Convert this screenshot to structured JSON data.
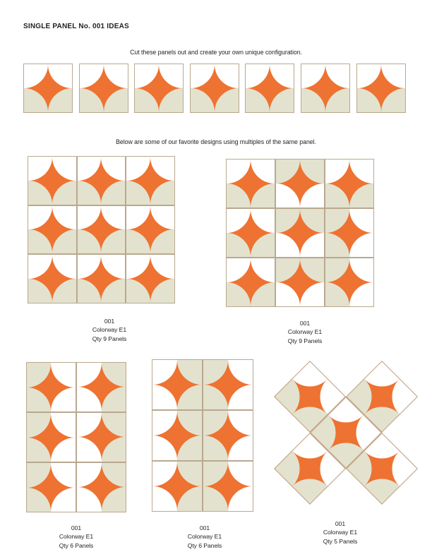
{
  "page": {
    "title": "SINGLE PANEL No. 001 IDEAS",
    "intro": "Cut these panels out and create your own unique configuration.",
    "note": "Below are some of our favorite designs using multiples of the same panel."
  },
  "colors": {
    "orange": "#ee7231",
    "beige": "#e3e2ce",
    "line": "#b9a88f",
    "text": "#231f20",
    "page_bg": "#ffffff"
  },
  "cutout_row": {
    "rotations": [
      0,
      0,
      0,
      0,
      0,
      0,
      0
    ]
  },
  "designs": [
    {
      "name": "3x3 all stars",
      "cols": 3,
      "rows": 3,
      "rotations": [
        [
          0,
          0,
          0
        ],
        [
          0,
          0,
          0
        ],
        [
          0,
          0,
          0
        ]
      ],
      "caption": {
        "number": "001",
        "colorway": "Colorway E1",
        "qty": "Qty 9 Panels"
      }
    },
    {
      "name": "3x3 alternating rotations",
      "cols": 3,
      "rows": 3,
      "rotations": [
        [
          0,
          180,
          0
        ],
        [
          0,
          180,
          90
        ],
        [
          0,
          180,
          90
        ]
      ],
      "caption": {
        "number": "001",
        "colorway": "Colorway E1",
        "qty": "Qty 9 Panels"
      }
    },
    {
      "name": "2x3 white circles column",
      "cols": 2,
      "rows": 3,
      "rotations": [
        [
          90,
          270
        ],
        [
          90,
          270
        ],
        [
          90,
          270
        ]
      ],
      "caption": {
        "number": "001",
        "colorway": "Colorway E1",
        "qty": "Qty 6 Panels"
      }
    },
    {
      "name": "2x3 beige circles column",
      "cols": 2,
      "rows": 3,
      "rotations": [
        [
          270,
          90
        ],
        [
          270,
          90
        ],
        [
          270,
          90
        ]
      ],
      "caption": {
        "number": "001",
        "colorway": "Colorway E1",
        "qty": "Qty 6 Panels"
      }
    },
    {
      "name": "quincunx X of rotated panels",
      "layout": "x",
      "tiles": [
        {
          "pos": "top-left",
          "rotation": 45
        },
        {
          "pos": "top-right",
          "rotation": 45
        },
        {
          "pos": "center",
          "rotation": 45
        },
        {
          "pos": "bottom-left",
          "rotation": 45
        },
        {
          "pos": "bottom-right",
          "rotation": 45
        }
      ],
      "caption": {
        "number": "001",
        "colorway": "Colorway E1",
        "qty": "Qty 5 Panels"
      }
    }
  ]
}
